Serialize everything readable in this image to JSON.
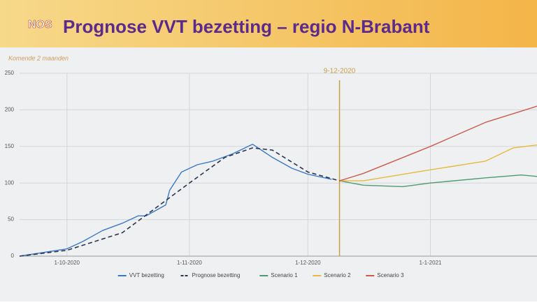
{
  "header": {
    "logo": "NOS"
  },
  "chart_data": {
    "type": "line",
    "title": "Prognose VVT bezetting – regio N-Brabant",
    "subtitle": "Komende 2 maanden",
    "xlim": [
      "2020-09-19",
      "2021-01-28"
    ],
    "xticks": [
      {
        "value": "2020-10-01",
        "label": "1-10-2020"
      },
      {
        "value": "2020-11-01",
        "label": "1-11-2020"
      },
      {
        "value": "2020-12-01",
        "label": "1-12-2020"
      },
      {
        "value": "2021-01-01",
        "label": "1-1-2021"
      }
    ],
    "ylim": [
      0,
      250
    ],
    "yticks": [
      0,
      50,
      100,
      150,
      200,
      250
    ],
    "grid": true,
    "annotation": {
      "x": "2020-12-09",
      "text": "9-12-2020",
      "color": "#c9a043"
    },
    "legend": "bottom",
    "series": [
      {
        "name": "VVT bezetting",
        "color": "#3b78c4",
        "style": "solid",
        "x": [
          "2020-09-19",
          "2020-10-01",
          "2020-10-05",
          "2020-10-10",
          "2020-10-15",
          "2020-10-19",
          "2020-10-21",
          "2020-10-26",
          "2020-10-27",
          "2020-10-30",
          "2020-11-03",
          "2020-11-07",
          "2020-11-12",
          "2020-11-17",
          "2020-11-22",
          "2020-11-27",
          "2020-12-01",
          "2020-12-07"
        ],
        "values": [
          0,
          10,
          20,
          35,
          45,
          55,
          55,
          70,
          90,
          115,
          125,
          130,
          140,
          153,
          135,
          120,
          112,
          105
        ]
      },
      {
        "name": "Prognose bezetting",
        "color": "#2a3550",
        "style": "dashed",
        "x": [
          "2020-09-19",
          "2020-10-01",
          "2020-10-15",
          "2020-11-01",
          "2020-11-10",
          "2020-11-17",
          "2020-11-22",
          "2020-12-01",
          "2020-12-09"
        ],
        "values": [
          0,
          8,
          32,
          100,
          135,
          148,
          145,
          115,
          103
        ]
      },
      {
        "name": "Scenario 1",
        "color": "#4f9a6e",
        "style": "solid",
        "x": [
          "2020-12-09",
          "2020-12-15",
          "2020-12-25",
          "2021-01-01",
          "2021-01-15",
          "2021-01-24",
          "2021-01-28"
        ],
        "values": [
          103,
          97,
          95,
          100,
          107,
          111,
          109
        ]
      },
      {
        "name": "Scenario 2",
        "color": "#e8b93a",
        "style": "solid",
        "x": [
          "2020-12-09",
          "2020-12-15",
          "2021-01-01",
          "2021-01-15",
          "2021-01-22",
          "2021-01-28"
        ],
        "values": [
          103,
          103,
          118,
          130,
          148,
          152
        ]
      },
      {
        "name": "Scenario 3",
        "color": "#cc5a4f",
        "style": "solid",
        "x": [
          "2020-12-09",
          "2020-12-15",
          "2021-01-01",
          "2021-01-15",
          "2021-01-28"
        ],
        "values": [
          103,
          113,
          150,
          183,
          205
        ]
      }
    ]
  }
}
